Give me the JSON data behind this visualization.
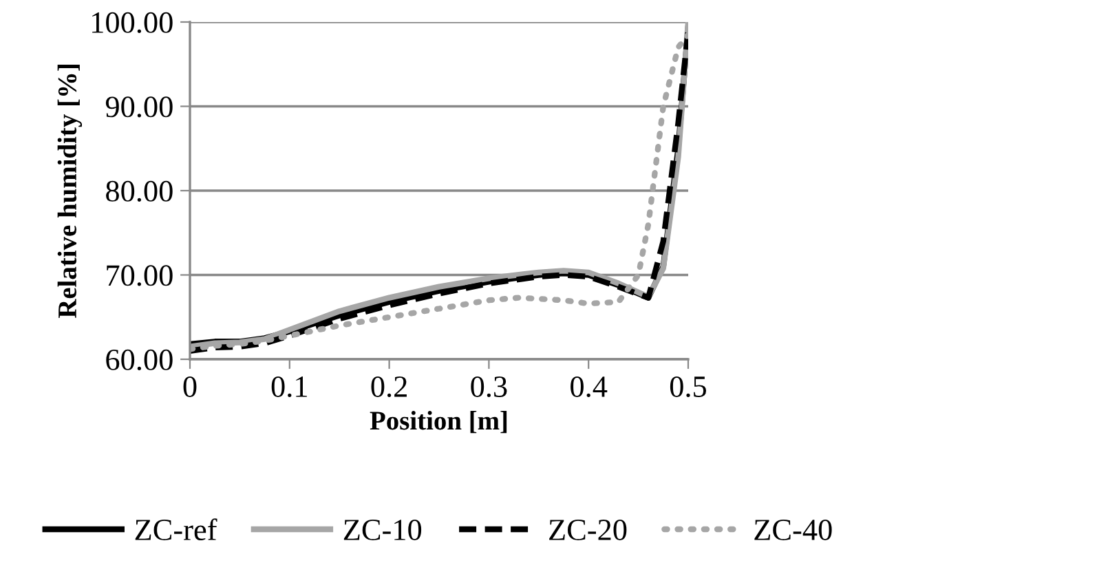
{
  "chart_data": {
    "type": "line",
    "xlabel": "Position [m]",
    "ylabel": "Relative humidity [%]",
    "xlim": [
      0,
      0.5
    ],
    "xticks": [
      0,
      0.1,
      0.2,
      0.3,
      0.4,
      0.5
    ],
    "ylim": [
      60,
      100
    ],
    "yticks": [
      {
        "value": 60,
        "label": "60.00"
      },
      {
        "value": 70,
        "label": "70.00"
      },
      {
        "value": 80,
        "label": "80.00"
      },
      {
        "value": 90,
        "label": "90.00"
      },
      {
        "value": 100,
        "label": "100.00"
      }
    ],
    "grid": "y",
    "legend": "bottom",
    "marker": "none",
    "series": [
      {
        "name": "ZC-ref",
        "color": "#000000",
        "line_style": "solid",
        "x": [
          0,
          0.025,
          0.05,
          0.075,
          0.1,
          0.15,
          0.2,
          0.25,
          0.3,
          0.35,
          0.375,
          0.4,
          0.43,
          0.46,
          0.475,
          0.49,
          0.5
        ],
        "values": [
          61.8,
          62.1,
          62.1,
          62.5,
          63.3,
          65.2,
          66.8,
          68.1,
          69.2,
          70.0,
          70.2,
          70.0,
          68.8,
          67.3,
          71,
          85,
          99.5
        ]
      },
      {
        "name": "ZC-10",
        "color": "#a6a6a6",
        "line_style": "solid",
        "x": [
          0,
          0.025,
          0.05,
          0.075,
          0.1,
          0.15,
          0.2,
          0.25,
          0.3,
          0.35,
          0.375,
          0.4,
          0.43,
          0.46,
          0.475,
          0.49,
          0.5
        ],
        "values": [
          61.5,
          61.9,
          62.0,
          62.4,
          63.5,
          65.7,
          67.3,
          68.6,
          69.6,
          70.3,
          70.5,
          70.3,
          69,
          67.4,
          70.8,
          84,
          100
        ]
      },
      {
        "name": "ZC-20",
        "color": "#000000",
        "line_style": "dashed",
        "x": [
          0,
          0.025,
          0.05,
          0.075,
          0.1,
          0.15,
          0.2,
          0.25,
          0.3,
          0.35,
          0.375,
          0.4,
          0.43,
          0.46,
          0.475,
          0.49,
          0.5
        ],
        "values": [
          61.0,
          61.4,
          61.5,
          61.9,
          62.8,
          64.8,
          66.4,
          67.8,
          69.0,
          69.8,
          70.0,
          69.8,
          68.6,
          67.3,
          74,
          88,
          99
        ]
      },
      {
        "name": "ZC-40",
        "color": "#a6a6a6",
        "line_style": "dotted",
        "x": [
          0,
          0.025,
          0.05,
          0.075,
          0.1,
          0.15,
          0.2,
          0.25,
          0.3,
          0.33,
          0.375,
          0.4,
          0.43,
          0.45,
          0.46,
          0.475,
          0.49,
          0.5
        ],
        "values": [
          61.2,
          61.6,
          61.8,
          62.2,
          62.8,
          64.0,
          65.0,
          66.0,
          67.0,
          67.3,
          67.0,
          66.6,
          66.8,
          70,
          76,
          90,
          97,
          98.5
        ]
      }
    ]
  }
}
